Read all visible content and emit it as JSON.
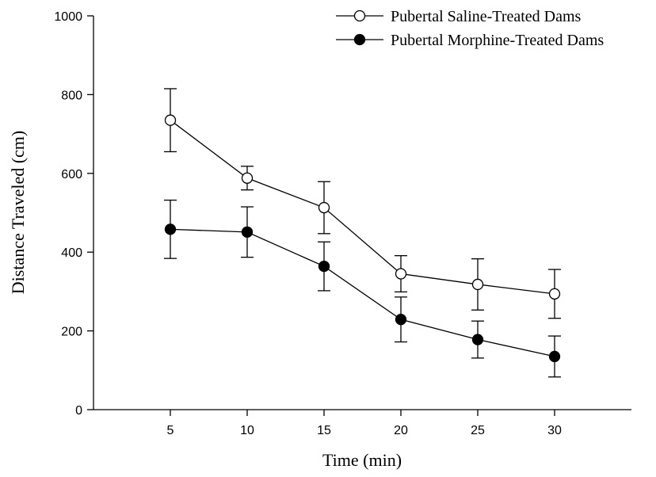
{
  "chart_data": {
    "type": "line",
    "title": "",
    "xlabel": "Time (min)",
    "ylabel": "Distance Traveled (cm)",
    "x": [
      5,
      10,
      15,
      20,
      25,
      30
    ],
    "xlim": [
      0,
      35
    ],
    "ylim": [
      0,
      1000
    ],
    "xticks": [
      5,
      10,
      15,
      20,
      25,
      30
    ],
    "yticks": [
      0,
      200,
      400,
      600,
      800,
      1000
    ],
    "grid": false,
    "legend_position": "top-right",
    "series": [
      {
        "name": "Pubertal Saline-Treated Dams",
        "marker": "open-circle",
        "values": [
          735,
          588,
          513,
          345,
          318,
          294
        ],
        "error": [
          80,
          30,
          66,
          46,
          65,
          62
        ]
      },
      {
        "name": "Pubertal Morphine-Treated Dams",
        "marker": "filled-circle",
        "values": [
          458,
          451,
          364,
          229,
          178,
          135
        ],
        "error": [
          74,
          64,
          62,
          57,
          47,
          52
        ]
      }
    ]
  }
}
